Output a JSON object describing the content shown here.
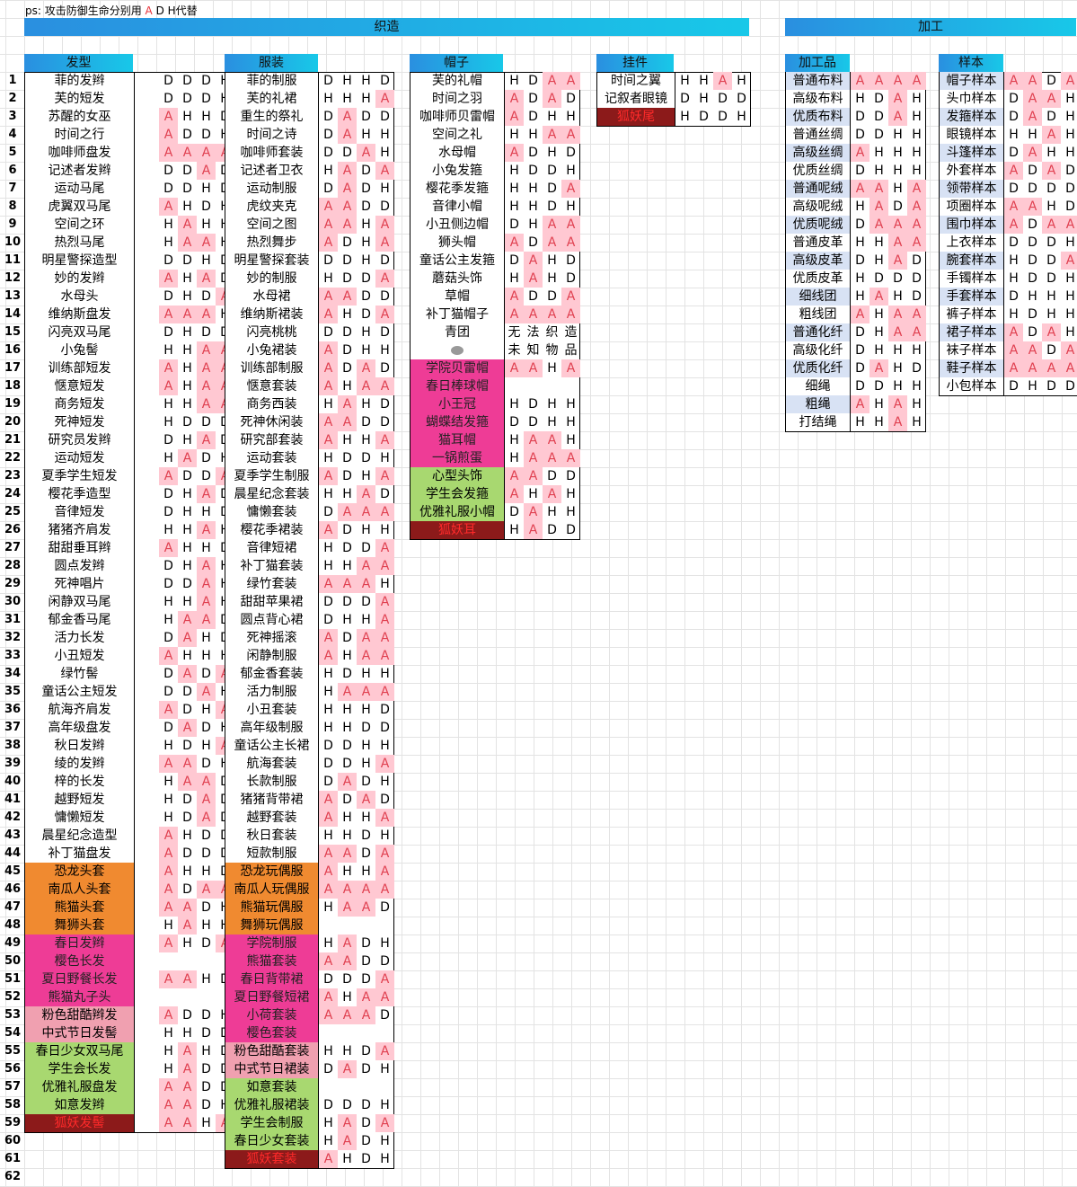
{
  "note": {
    "prefix": "ps:  攻击防御生命分别用 ",
    "a": "A",
    "mid": " D ",
    "h": "H",
    "suffix": "代替"
  },
  "banners": {
    "weave": "织造",
    "process": "加工"
  },
  "row_numbers": [
    "1",
    "2",
    "3",
    "4",
    "5",
    "6",
    "7",
    "8",
    "9",
    "10",
    "11",
    "12",
    "13",
    "14",
    "15",
    "16",
    "17",
    "18",
    "19",
    "20",
    "21",
    "22",
    "23",
    "24",
    "25",
    "26",
    "27",
    "28",
    "29",
    "30",
    "31",
    "32",
    "33",
    "34",
    "35",
    "36",
    "37",
    "38",
    "39",
    "40",
    "41",
    "42",
    "43",
    "44",
    "45",
    "46",
    "47",
    "48",
    "49",
    "50",
    "51",
    "52",
    "53",
    "54",
    "55",
    "56",
    "57",
    "58",
    "59",
    "60",
    "61",
    "62"
  ],
  "tables": [
    {
      "key": "hair",
      "title": "发型",
      "rows": [
        {
          "name": "菲的发辫",
          "stats": "DDDH"
        },
        {
          "name": "芙的短发",
          "stats": "DDDH"
        },
        {
          "name": "苏醒的女巫",
          "stats": "AHHD"
        },
        {
          "name": "时间之行",
          "stats": "ADDH"
        },
        {
          "name": "咖啡师盘发",
          "stats": "AAAA"
        },
        {
          "name": "记述者发辫",
          "stats": "DDAD"
        },
        {
          "name": "运动马尾",
          "stats": "DDHD"
        },
        {
          "name": "虎翼双马尾",
          "stats": "AHDH"
        },
        {
          "name": "空间之环",
          "stats": "HAHH"
        },
        {
          "name": "热烈马尾",
          "stats": "HAAH"
        },
        {
          "name": "明星警探造型",
          "stats": "DDHD"
        },
        {
          "name": "妙的发辫",
          "stats": "AHAD"
        },
        {
          "name": "水母头",
          "stats": "DHDA"
        },
        {
          "name": "维纳斯盘发",
          "stats": "AAAH"
        },
        {
          "name": "闪亮双马尾",
          "stats": "DHDD"
        },
        {
          "name": "小兔髻",
          "stats": "HHAA"
        },
        {
          "name": "训练部短发",
          "stats": "AHAA"
        },
        {
          "name": "惬意短发",
          "stats": "AHAA"
        },
        {
          "name": "商务短发",
          "stats": "HHAA"
        },
        {
          "name": "死神短发",
          "stats": "HDDD"
        },
        {
          "name": "研究员发辫",
          "stats": "DHAD"
        },
        {
          "name": "运动短发",
          "stats": "HADH"
        },
        {
          "name": "夏季学生短发",
          "stats": "ADDA"
        },
        {
          "name": "樱花季造型",
          "stats": "DHAD"
        },
        {
          "name": "音律短发",
          "stats": "DHHD"
        },
        {
          "name": "猪猪齐肩发",
          "stats": "HHAH"
        },
        {
          "name": "甜甜垂耳辫",
          "stats": "AHHD"
        },
        {
          "name": "圆点发辫",
          "stats": "DHAH"
        },
        {
          "name": "死神唱片",
          "stats": "DDAH"
        },
        {
          "name": "闲静双马尾",
          "stats": "HHAH"
        },
        {
          "name": "郁金香马尾",
          "stats": "HAAD"
        },
        {
          "name": "活力长发",
          "stats": "DAHD"
        },
        {
          "name": "小丑短发",
          "stats": "AHHH"
        },
        {
          "name": "绿竹髻",
          "stats": "DADA"
        },
        {
          "name": "童话公主短发",
          "stats": "DDAH"
        },
        {
          "name": "航海齐肩发",
          "stats": "ADHA"
        },
        {
          "name": "高年级盘发",
          "stats": "DADH"
        },
        {
          "name": "秋日发辫",
          "stats": "HDHA"
        },
        {
          "name": "绫的发辫",
          "stats": "AADH"
        },
        {
          "name": "梓的长发",
          "stats": "HAAD"
        },
        {
          "name": "越野短发",
          "stats": "HDAD"
        },
        {
          "name": "慵懒短发",
          "stats": "HDAD"
        },
        {
          "name": "晨星纪念造型",
          "stats": "AHDD"
        },
        {
          "name": "补丁猫盘发",
          "stats": "ADDD"
        },
        {
          "name": "恐龙头套",
          "stats": "AHHD",
          "hl": "orange"
        },
        {
          "name": "南瓜人头套",
          "stats": "ADAA",
          "hl": "orange"
        },
        {
          "name": "熊猫头套",
          "stats": "AADH",
          "hl": "orange"
        },
        {
          "name": "舞狮头套",
          "stats": "HAHH",
          "hl": "orange"
        },
        {
          "name": "春日发辫",
          "stats": "AHDA",
          "hl": "pink"
        },
        {
          "name": "樱色长发",
          "stats": "",
          "hl": "pink"
        },
        {
          "name": "夏日野餐长发",
          "stats": "AAHD",
          "hl": "pink"
        },
        {
          "name": "熊猫丸子头",
          "stats": "",
          "hl": "pink"
        },
        {
          "name": "粉色甜酷辫发",
          "stats": "ADDH",
          "hl": "lightpink"
        },
        {
          "name": "中式节日发髻",
          "stats": "HHDD",
          "hl": "lightpink"
        },
        {
          "name": "春日少女双马尾",
          "stats": "HAHD",
          "hl": "green"
        },
        {
          "name": "学生会长发",
          "stats": "HADD",
          "hl": "green"
        },
        {
          "name": "优雅礼服盘发",
          "stats": "AADD",
          "hl": "green"
        },
        {
          "name": "如意发辫",
          "stats": "AADH",
          "hl": "green"
        },
        {
          "name": "狐妖发髻",
          "stats": "AAHA",
          "hl": "maroon"
        }
      ]
    },
    {
      "key": "clothes",
      "title": "服装",
      "rows": [
        {
          "name": "菲的制服",
          "stats": "DHHD"
        },
        {
          "name": "芙的礼裙",
          "stats": "HHHA"
        },
        {
          "name": "重生的祭礼",
          "stats": "DADD"
        },
        {
          "name": "时间之诗",
          "stats": "DAHH"
        },
        {
          "name": "咖啡师套装",
          "stats": "DDAH"
        },
        {
          "name": "记述者卫衣",
          "stats": "HADA"
        },
        {
          "name": "运动制服",
          "stats": "DADH"
        },
        {
          "name": "虎纹夹克",
          "stats": "AADD"
        },
        {
          "name": "空间之图",
          "stats": "AAHA"
        },
        {
          "name": "热烈舞步",
          "stats": "ADHA"
        },
        {
          "name": "明星警探套装",
          "stats": "DDHD"
        },
        {
          "name": "妙的制服",
          "stats": "HDDA"
        },
        {
          "name": "水母裙",
          "stats": "AADD"
        },
        {
          "name": "维纳斯裙装",
          "stats": "AHDA"
        },
        {
          "name": "闪亮桃桃",
          "stats": "DDHD"
        },
        {
          "name": "小兔裙装",
          "stats": "ADHH"
        },
        {
          "name": "训练部制服",
          "stats": "ADAD"
        },
        {
          "name": "惬意套装",
          "stats": "AHAA"
        },
        {
          "name": "商务西装",
          "stats": "HAHD"
        },
        {
          "name": "死神休闲装",
          "stats": "AADD"
        },
        {
          "name": "研究部套装",
          "stats": "AHHA"
        },
        {
          "name": "运动套装",
          "stats": "HDDH"
        },
        {
          "name": "夏季学生制服",
          "stats": "ADHA"
        },
        {
          "name": "晨星纪念套装",
          "stats": "HHAD"
        },
        {
          "name": "慵懒套装",
          "stats": "DAAA"
        },
        {
          "name": "樱花季裙装",
          "stats": "ADHH"
        },
        {
          "name": "音律短裙",
          "stats": "HDDA"
        },
        {
          "name": "补丁猫套装",
          "stats": "HHAA"
        },
        {
          "name": "绿竹套装",
          "stats": "AAAH"
        },
        {
          "name": "甜甜苹果裙",
          "stats": "DDDA"
        },
        {
          "name": "圆点背心裙",
          "stats": "DHHA"
        },
        {
          "name": "死神摇滚",
          "stats": "ADAA"
        },
        {
          "name": "闲静制服",
          "stats": "AHAA"
        },
        {
          "name": "郁金香套装",
          "stats": "HDHH"
        },
        {
          "name": "活力制服",
          "stats": "HAAA"
        },
        {
          "name": "小丑套装",
          "stats": "HHHD"
        },
        {
          "name": "高年级制服",
          "stats": "HHDD"
        },
        {
          "name": "童话公主长裙",
          "stats": "DDHH"
        },
        {
          "name": "航海套装",
          "stats": "DDHA"
        },
        {
          "name": "长款制服",
          "stats": "DADH"
        },
        {
          "name": "猪猪背带裙",
          "stats": "ADAD"
        },
        {
          "name": "越野套装",
          "stats": "AHHA"
        },
        {
          "name": "秋日套装",
          "stats": "HHDH"
        },
        {
          "name": "短款制服",
          "stats": "AADA"
        },
        {
          "name": "恐龙玩偶服",
          "stats": "AHHA",
          "hl": "orange"
        },
        {
          "name": "南瓜人玩偶服",
          "stats": "AAAA",
          "hl": "orange"
        },
        {
          "name": "熊猫玩偶服",
          "stats": "HAAD",
          "hl": "orange"
        },
        {
          "name": "舞狮玩偶服",
          "stats": "",
          "hl": "orange"
        },
        {
          "name": "学院制服",
          "stats": "HADH",
          "hl": "pink"
        },
        {
          "name": "熊猫套装",
          "stats": "AADD",
          "hl": "pink"
        },
        {
          "name": "春日背带裙",
          "stats": "DDDA",
          "hl": "pink"
        },
        {
          "name": "夏日野餐短裙",
          "stats": "AHAA",
          "hl": "pink"
        },
        {
          "name": "小荷套装",
          "stats": "AAAD",
          "hl": "pink"
        },
        {
          "name": "樱色套装",
          "stats": "",
          "hl": "pink"
        },
        {
          "name": "粉色甜酷套装",
          "stats": "HHDA",
          "hl": "lightpink"
        },
        {
          "name": "中式节日裙装",
          "stats": "DADH",
          "hl": "lightpink"
        },
        {
          "name": "如意套装",
          "stats": "",
          "hl": "green"
        },
        {
          "name": "优雅礼服裙装",
          "stats": "DDDH",
          "hl": "green"
        },
        {
          "name": "学生会制服",
          "stats": "HADA",
          "hl": "green"
        },
        {
          "name": "春日少女套装",
          "stats": "HADH",
          "hl": "green"
        },
        {
          "name": "狐妖套装",
          "stats": "AHDH",
          "hl": "maroon"
        }
      ]
    },
    {
      "key": "hats",
      "title": "帽子",
      "rows": [
        {
          "name": "芙的礼帽",
          "stats": "HDAA"
        },
        {
          "name": "时间之羽",
          "stats": "ADAD"
        },
        {
          "name": "咖啡师贝雷帽",
          "stats": "ADHH"
        },
        {
          "name": "空间之礼",
          "stats": "HHAA"
        },
        {
          "name": "水母帽",
          "stats": "ADHD"
        },
        {
          "name": "小兔发箍",
          "stats": "HDDH"
        },
        {
          "name": "樱花季发箍",
          "stats": "HHDA"
        },
        {
          "name": "音律小帽",
          "stats": "HHDH"
        },
        {
          "name": "小丑侧边帽",
          "stats": "DHAA"
        },
        {
          "name": "狮头帽",
          "stats": "ADAA"
        },
        {
          "name": "童话公主发箍",
          "stats": "DAHD"
        },
        {
          "name": "蘑菇头饰",
          "stats": "HAHD"
        },
        {
          "name": "草帽",
          "stats": "ADDA"
        },
        {
          "name": "补丁猫帽子",
          "stats": "AAAA"
        },
        {
          "name": "青团",
          "text": "无法织造"
        },
        {
          "name": "",
          "icon": true,
          "text": "未知物品"
        },
        {
          "name": "学院贝雷帽",
          "stats": "AAHA",
          "hl": "pink"
        },
        {
          "name": "春日棒球帽",
          "stats": "",
          "hl": "pink"
        },
        {
          "name": "小王冠",
          "stats": "HDHH",
          "hl": "pink"
        },
        {
          "name": "蝴蝶结发箍",
          "stats": "DDHH",
          "hl": "pink"
        },
        {
          "name": "猫耳帽",
          "stats": "HAAH",
          "hl": "pink"
        },
        {
          "name": "一锅煎蛋",
          "stats": "HAAA",
          "hl": "pink"
        },
        {
          "name": "心型头饰",
          "stats": "AADD",
          "hl": "green"
        },
        {
          "name": "学生会发箍",
          "stats": "AHAH",
          "hl": "green"
        },
        {
          "name": "优雅礼服小帽",
          "stats": "DAHH",
          "hl": "green"
        },
        {
          "name": "狐妖耳",
          "stats": "HADD",
          "hl": "maroon"
        }
      ]
    },
    {
      "key": "accessory",
      "title": "挂件",
      "rows": [
        {
          "name": "时间之翼",
          "stats": "HHAH"
        },
        {
          "name": "记叙者眼镜",
          "stats": "DHDD"
        },
        {
          "name": "狐妖尾",
          "stats": "HDDH",
          "hl": "maroon"
        }
      ]
    },
    {
      "key": "processed",
      "title": "加工品",
      "rows": [
        {
          "name": "普通布料",
          "stats": "AAAA",
          "hl": "blue"
        },
        {
          "name": "高级布料",
          "stats": "HDAH"
        },
        {
          "name": "优质布料",
          "stats": "DDAH",
          "hl": "blue"
        },
        {
          "name": "普通丝绸",
          "stats": "DDHH"
        },
        {
          "name": "高级丝绸",
          "stats": "AHHH",
          "hl": "blue"
        },
        {
          "name": "优质丝绸",
          "stats": "DHHH"
        },
        {
          "name": "普通呢绒",
          "stats": "AAHA",
          "hl": "blue"
        },
        {
          "name": "高级呢绒",
          "stats": "HADA"
        },
        {
          "name": "优质呢绒",
          "stats": "DAAA",
          "hl": "blue"
        },
        {
          "name": "普通皮革",
          "stats": "HHAA"
        },
        {
          "name": "高级皮革",
          "stats": "DHAD",
          "hl": "blue"
        },
        {
          "name": "优质皮革",
          "stats": "HDDD"
        },
        {
          "name": "细线团",
          "stats": "HAHD",
          "hl": "blue"
        },
        {
          "name": "粗线团",
          "stats": "AHAA"
        },
        {
          "name": "普通化纤",
          "stats": "DHAA",
          "hl": "blue"
        },
        {
          "name": "高级化纤",
          "stats": "DHHH"
        },
        {
          "name": "优质化纤",
          "stats": "DAHD",
          "hl": "blue"
        },
        {
          "name": "细绳",
          "stats": "DDHH"
        },
        {
          "name": "粗绳",
          "stats": "AHAH",
          "hl": "blue"
        },
        {
          "name": "打结绳",
          "stats": "HHAH"
        }
      ]
    },
    {
      "key": "samples",
      "title": "样本",
      "rows": [
        {
          "name": "帽子样本",
          "stats": "AADA",
          "hl": "blue"
        },
        {
          "name": "头巾样本",
          "stats": "DAAH"
        },
        {
          "name": "发箍样本",
          "stats": "DADH",
          "hl": "blue"
        },
        {
          "name": "眼镜样本",
          "stats": "HHAH"
        },
        {
          "name": "斗篷样本",
          "stats": "DAHH",
          "hl": "blue"
        },
        {
          "name": "外套样本",
          "stats": "ADAD"
        },
        {
          "name": "领带样本",
          "stats": "DDDD",
          "hl": "blue"
        },
        {
          "name": "项圈样本",
          "stats": "AAHD"
        },
        {
          "name": "围巾样本",
          "stats": "ADAA",
          "hl": "blue"
        },
        {
          "name": "上衣样本",
          "stats": "DDDH"
        },
        {
          "name": "腕套样本",
          "stats": "HDDA",
          "hl": "blue"
        },
        {
          "name": "手镯样本",
          "stats": "HDDH"
        },
        {
          "name": "手套样本",
          "stats": "DHHH",
          "hl": "blue"
        },
        {
          "name": "裤子样本",
          "stats": "HDHH"
        },
        {
          "name": "裙子样本",
          "stats": "ADAH",
          "hl": "blue"
        },
        {
          "name": "袜子样本",
          "stats": "AADA"
        },
        {
          "name": "鞋子样本",
          "stats": "AAAA",
          "hl": "blue"
        },
        {
          "name": "小包样本",
          "stats": "DHDD"
        }
      ]
    }
  ]
}
